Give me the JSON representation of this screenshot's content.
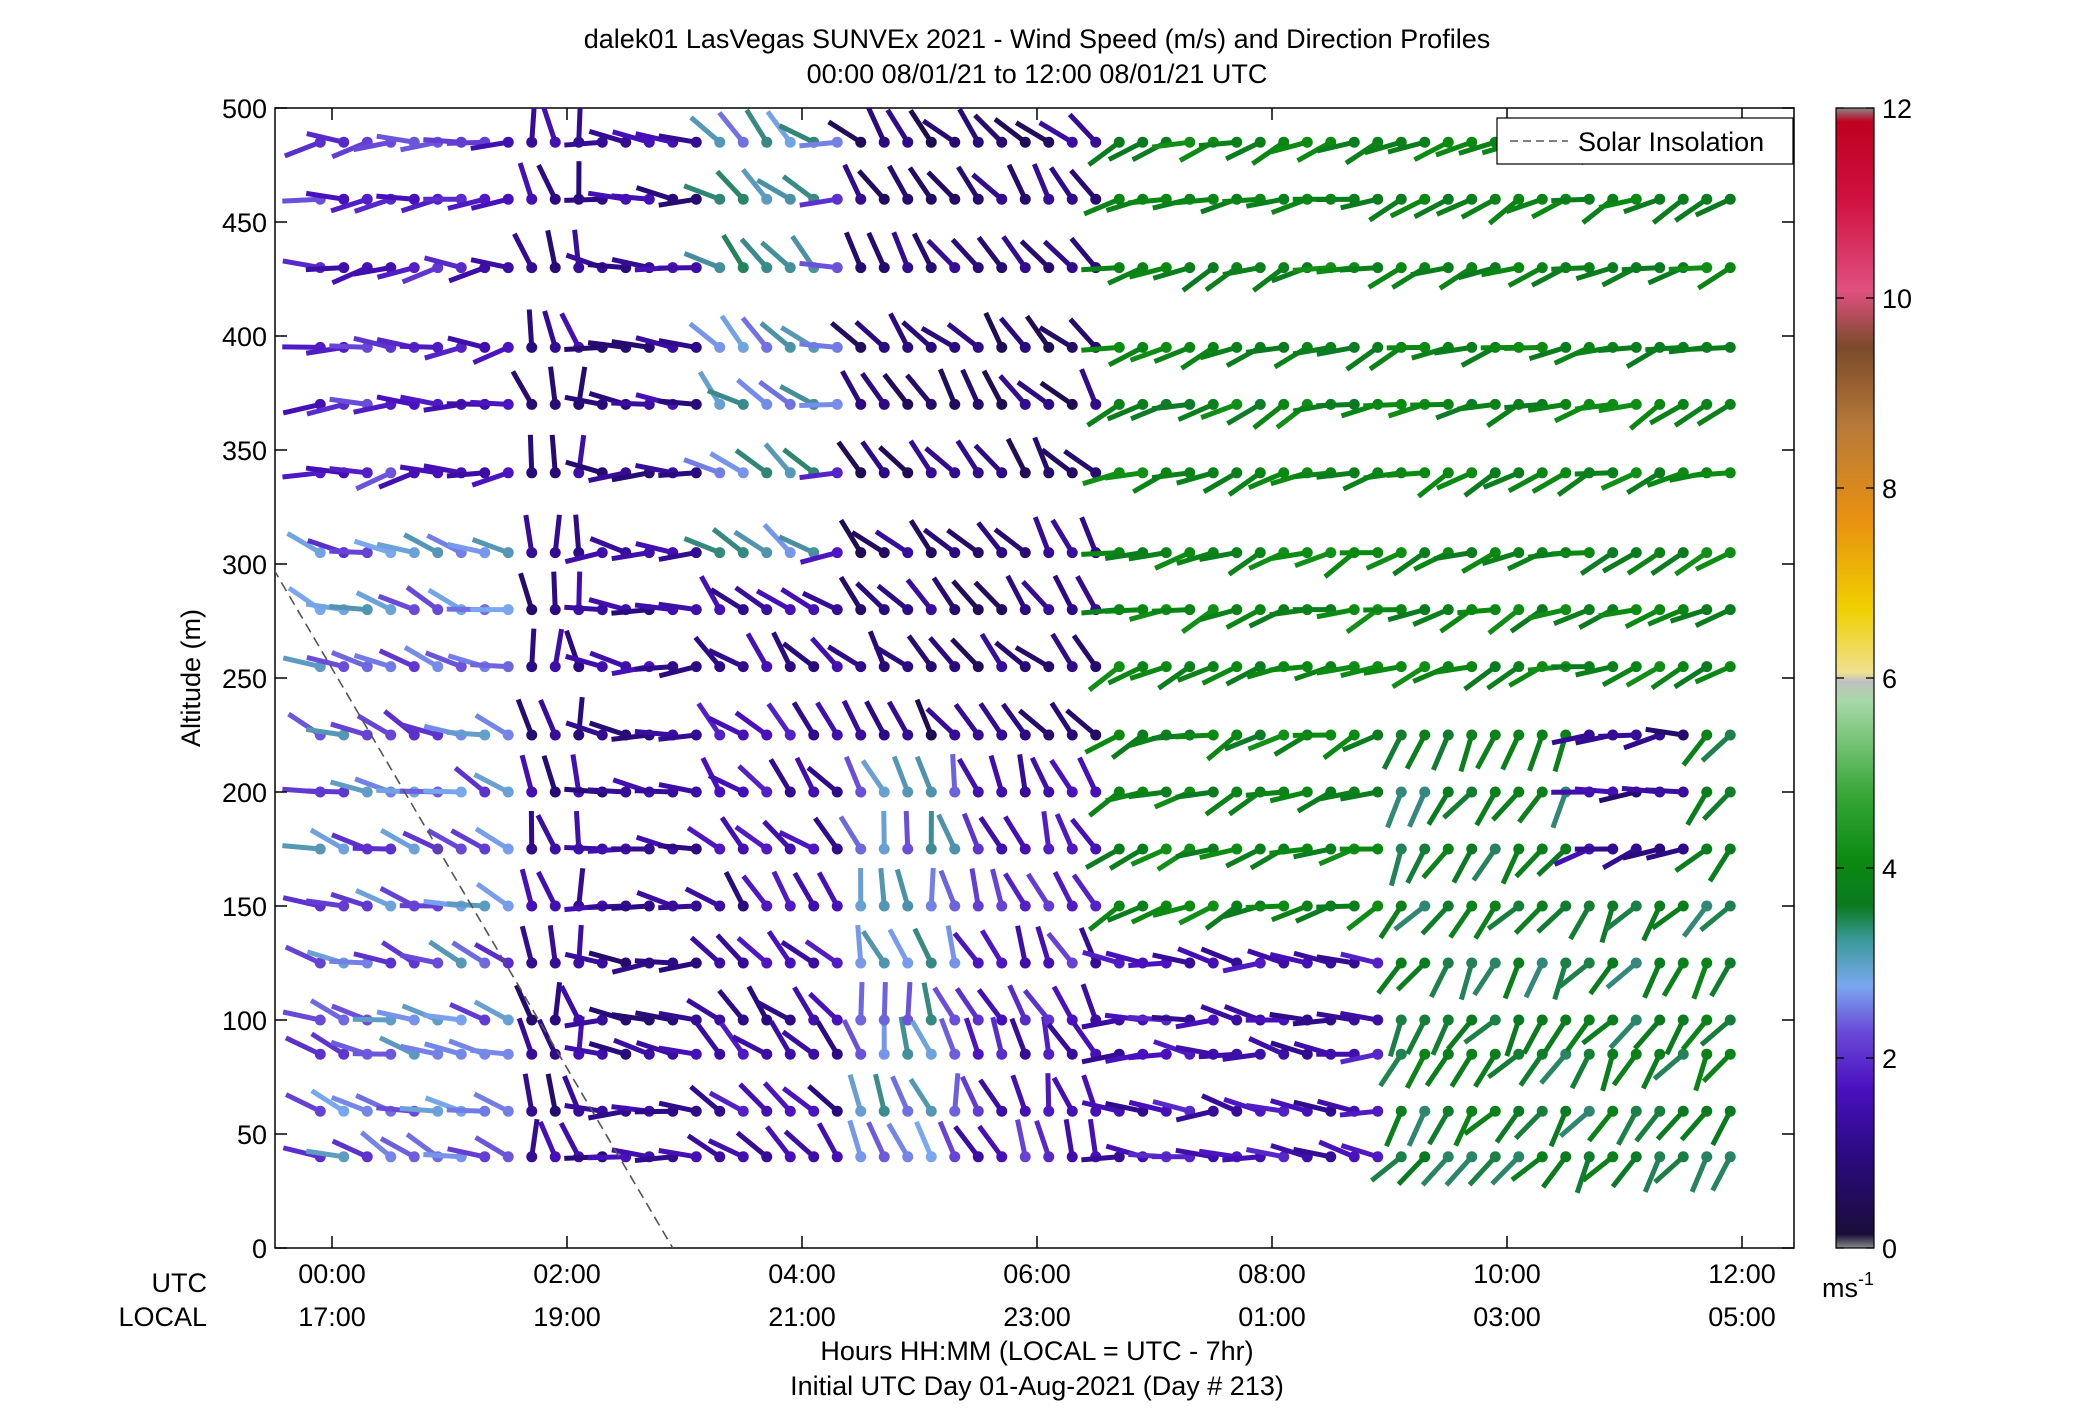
{
  "chart_data": {
    "type": "wind-barb-profile",
    "title": "dalek01 LasVegas SUNVEx 2021 - Wind Speed (m/s) and Direction Profiles",
    "subtitle": "00:00 08/01/21 to 12:00 08/01/21  UTC",
    "ylabel": "Altitude (m)",
    "xlabel": "Hours HH:MM  (LOCAL = UTC - 7hr)",
    "xlabel2": "Initial UTC Day 01-Aug-2021 (Day # 213)",
    "row_labels": {
      "utc": "UTC",
      "local": "LOCAL"
    },
    "xlim": [
      -0.5,
      12.5
    ],
    "ylim": [
      0,
      500
    ],
    "x_ticks_utc": [
      {
        "t": 0,
        "label": "00:00"
      },
      {
        "t": 2,
        "label": "02:00"
      },
      {
        "t": 4,
        "label": "04:00"
      },
      {
        "t": 6,
        "label": "06:00"
      },
      {
        "t": 8,
        "label": "08:00"
      },
      {
        "t": 10,
        "label": "10:00"
      },
      {
        "t": 12,
        "label": "12:00"
      }
    ],
    "x_ticks_local": [
      "17:00",
      "19:00",
      "21:00",
      "23:00",
      "01:00",
      "03:00",
      "05:00"
    ],
    "y_ticks": [
      0,
      50,
      100,
      150,
      200,
      250,
      300,
      350,
      400,
      450,
      500
    ],
    "altitudes": [
      40,
      60,
      85,
      100,
      125,
      150,
      175,
      200,
      225,
      255,
      280,
      305,
      340,
      370,
      395,
      430,
      460,
      485
    ],
    "time_start_h": -0.1,
    "time_step_h": 0.2,
    "time_count": 61,
    "colorbar": {
      "range": [
        0,
        12
      ],
      "ticks": [
        0,
        2,
        4,
        6,
        8,
        10,
        12
      ],
      "unit_label": "ms",
      "unit_sup": "-1"
    },
    "legend": {
      "position": "top-right",
      "entries": [
        {
          "label": "Solar Insolation",
          "style": "dashed"
        }
      ]
    },
    "solar_insolation_line": [
      {
        "t": -0.5,
        "alt": 298
      },
      {
        "t": 2.9,
        "alt": 0
      }
    ],
    "wind_regimes": [
      {
        "t0": -0.5,
        "t1": 0.55,
        "alt0": 0,
        "alt1": 270,
        "speed": 3.9,
        "dir": 255
      },
      {
        "t0": -0.5,
        "t1": 1.7,
        "alt0": 0,
        "alt1": 320,
        "speed": 2.2,
        "dir": 290
      },
      {
        "t0": -0.5,
        "t1": 1.9,
        "alt0": 320,
        "alt1": 510,
        "speed": 1.6,
        "dir": 265
      },
      {
        "t0": 1.7,
        "t1": 2.2,
        "alt0": 0,
        "alt1": 510,
        "speed": 1.0,
        "dir": 350
      },
      {
        "t0": 2.2,
        "t1": 3.3,
        "alt0": 0,
        "alt1": 510,
        "speed": 1.0,
        "dir": 275
      },
      {
        "t0": 3.3,
        "t1": 4.3,
        "alt0": 300,
        "alt1": 510,
        "speed": 2.6,
        "dir": 310
      },
      {
        "t0": 3.3,
        "t1": 4.4,
        "alt0": 0,
        "alt1": 300,
        "speed": 1.2,
        "dir": 315
      },
      {
        "t0": 4.4,
        "t1": 5.4,
        "alt0": 0,
        "alt1": 210,
        "speed": 2.4,
        "dir": 345
      },
      {
        "t0": 4.4,
        "t1": 6.6,
        "alt0": 210,
        "alt1": 510,
        "speed": 0.7,
        "dir": 320
      },
      {
        "t0": 5.4,
        "t1": 6.6,
        "alt0": 0,
        "alt1": 210,
        "speed": 1.5,
        "dir": 340
      },
      {
        "t0": 6.6,
        "t1": 12.5,
        "alt0": 0,
        "alt1": 510,
        "speed": 3.7,
        "dir": 250
      },
      {
        "t0": 6.6,
        "t1": 9.0,
        "alt0": 0,
        "alt1": 130,
        "speed": 1.3,
        "dir": 275
      },
      {
        "t0": 9.0,
        "t1": 12.5,
        "alt0": 0,
        "alt1": 250,
        "speed": 3.3,
        "dir": 215
      },
      {
        "t0": 10.6,
        "t1": 11.6,
        "alt0": 160,
        "alt1": 250,
        "speed": 1.0,
        "dir": 260
      }
    ]
  }
}
